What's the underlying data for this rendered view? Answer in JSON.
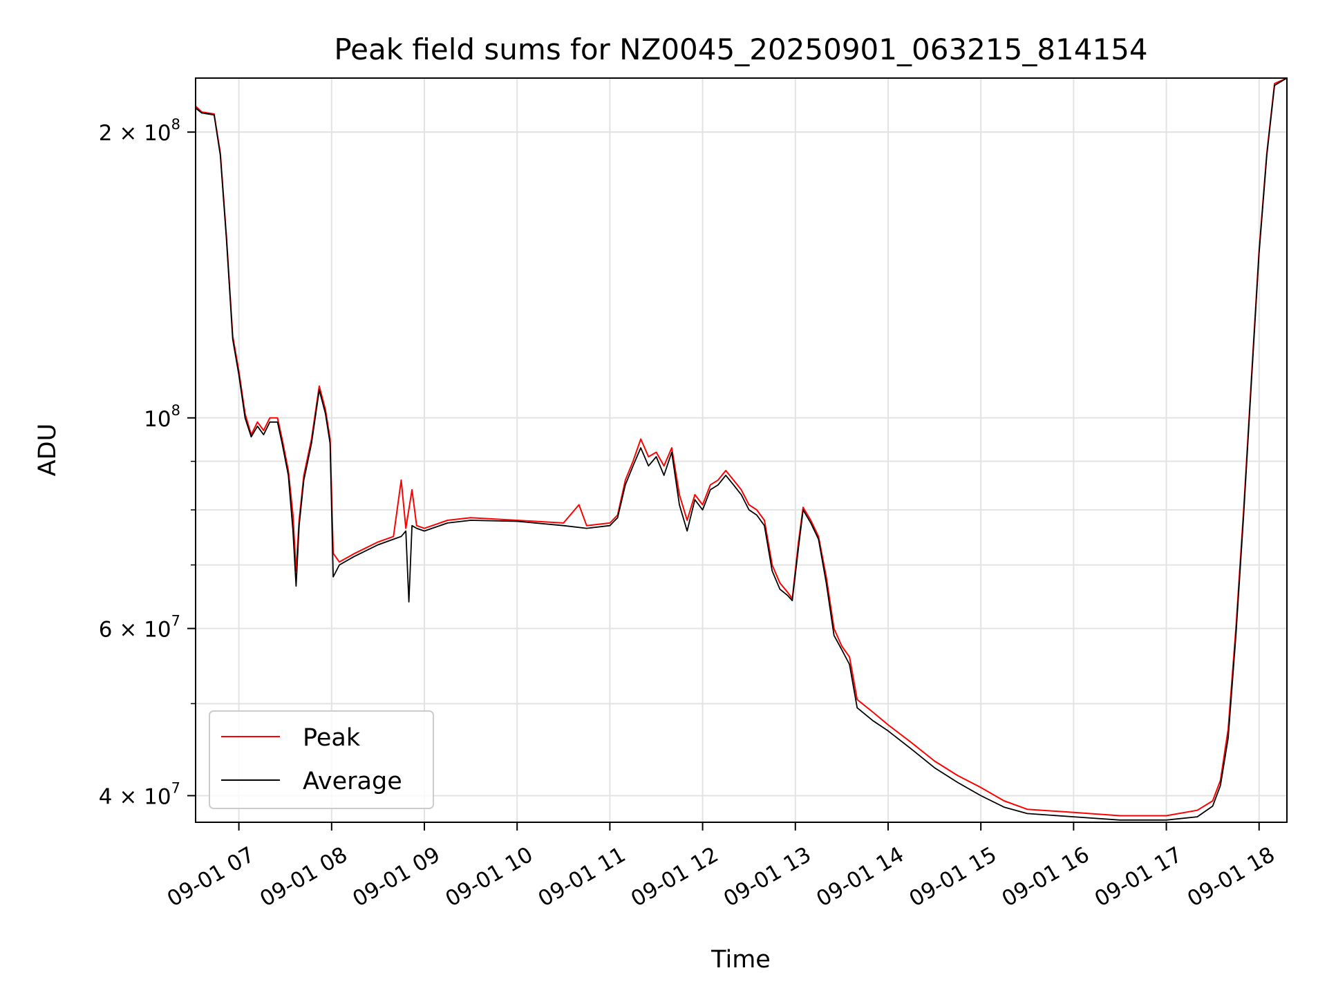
{
  "chart_data": {
    "type": "line",
    "title": "Peak field sums for NZ0045_20250901_063215_814154",
    "xlabel": "Time",
    "ylabel": "ADU",
    "yscale": "log",
    "grid": true,
    "legend_position": "lower-left",
    "xlim": [
      "06:32",
      "18:18"
    ],
    "ylim": [
      37500000,
      228000000
    ],
    "x_ticks": [
      {
        "value": "07:00",
        "label": "09-01 07"
      },
      {
        "value": "08:00",
        "label": "09-01 08"
      },
      {
        "value": "09:00",
        "label": "09-01 09"
      },
      {
        "value": "10:00",
        "label": "09-01 10"
      },
      {
        "value": "11:00",
        "label": "09-01 11"
      },
      {
        "value": "12:00",
        "label": "09-01 12"
      },
      {
        "value": "13:00",
        "label": "09-01 13"
      },
      {
        "value": "14:00",
        "label": "09-01 14"
      },
      {
        "value": "15:00",
        "label": "09-01 15"
      },
      {
        "value": "16:00",
        "label": "09-01 16"
      },
      {
        "value": "17:00",
        "label": "09-01 17"
      },
      {
        "value": "18:00",
        "label": "09-01 18"
      }
    ],
    "y_major_ticks": [
      {
        "value": 200000000,
        "mantissa": "2",
        "exp": "8"
      },
      {
        "value": 100000000,
        "mantissa": "",
        "exp": "8"
      },
      {
        "value": 60000000,
        "mantissa": "6",
        "exp": "7"
      },
      {
        "value": 40000000,
        "mantissa": "4",
        "exp": "7"
      }
    ],
    "y_minor_ticks": [
      40000000,
      50000000,
      60000000,
      70000000,
      80000000,
      90000000,
      200000000
    ],
    "series": [
      {
        "name": "Peak",
        "color": "#ff0000",
        "points": [
          [
            "06:32",
            213000000
          ],
          [
            "06:36",
            210000000
          ],
          [
            "06:44",
            209000000
          ],
          [
            "06:48",
            190000000
          ],
          [
            "06:52",
            155000000
          ],
          [
            "06:56",
            122000000
          ],
          [
            "07:00",
            112000000
          ],
          [
            "07:04",
            101000000
          ],
          [
            "07:08",
            96000000
          ],
          [
            "07:12",
            99000000
          ],
          [
            "07:16",
            97000000
          ],
          [
            "07:20",
            100000000
          ],
          [
            "07:25",
            100000000
          ],
          [
            "07:28",
            95000000
          ],
          [
            "07:32",
            88000000
          ],
          [
            "07:35",
            79000000
          ],
          [
            "07:37",
            69000000
          ],
          [
            "07:39",
            78000000
          ],
          [
            "07:42",
            87000000
          ],
          [
            "07:47",
            95000000
          ],
          [
            "07:52",
            108000000
          ],
          [
            "07:56",
            102000000
          ],
          [
            "07:59",
            95000000
          ],
          [
            "08:01",
            72000000
          ],
          [
            "08:05",
            70500000
          ],
          [
            "08:15",
            72000000
          ],
          [
            "08:30",
            74000000
          ],
          [
            "08:40",
            75000000
          ],
          [
            "08:45",
            86000000
          ],
          [
            "08:48",
            76500000
          ],
          [
            "08:52",
            84000000
          ],
          [
            "08:55",
            77000000
          ],
          [
            "09:00",
            76500000
          ],
          [
            "09:15",
            78000000
          ],
          [
            "09:30",
            78500000
          ],
          [
            "10:00",
            78000000
          ],
          [
            "10:30",
            77500000
          ],
          [
            "10:40",
            81000000
          ],
          [
            "10:45",
            77000000
          ],
          [
            "11:00",
            77500000
          ],
          [
            "11:05",
            79000000
          ],
          [
            "11:10",
            86000000
          ],
          [
            "11:15",
            90000000
          ],
          [
            "11:20",
            95000000
          ],
          [
            "11:25",
            91000000
          ],
          [
            "11:30",
            92000000
          ],
          [
            "11:35",
            89000000
          ],
          [
            "11:40",
            93000000
          ],
          [
            "11:45",
            83000000
          ],
          [
            "11:50",
            78000000
          ],
          [
            "11:55",
            83000000
          ],
          [
            "12:00",
            81000000
          ],
          [
            "12:05",
            85000000
          ],
          [
            "12:10",
            86000000
          ],
          [
            "12:15",
            88000000
          ],
          [
            "12:20",
            86000000
          ],
          [
            "12:25",
            84000000
          ],
          [
            "12:30",
            81000000
          ],
          [
            "12:35",
            80000000
          ],
          [
            "12:40",
            78000000
          ],
          [
            "12:45",
            70000000
          ],
          [
            "12:50",
            67000000
          ],
          [
            "12:55",
            65500000
          ],
          [
            "12:58",
            64500000
          ],
          [
            "13:02",
            74000000
          ],
          [
            "13:05",
            80500000
          ],
          [
            "13:10",
            78000000
          ],
          [
            "13:15",
            75000000
          ],
          [
            "13:20",
            68000000
          ],
          [
            "13:25",
            60000000
          ],
          [
            "13:30",
            57500000
          ],
          [
            "13:35",
            56000000
          ],
          [
            "13:40",
            50500000
          ],
          [
            "13:50",
            49000000
          ],
          [
            "14:00",
            47500000
          ],
          [
            "14:15",
            45500000
          ],
          [
            "14:30",
            43500000
          ],
          [
            "14:45",
            42000000
          ],
          [
            "15:00",
            40800000
          ],
          [
            "15:15",
            39500000
          ],
          [
            "15:30",
            38700000
          ],
          [
            "16:00",
            38400000
          ],
          [
            "16:30",
            38100000
          ],
          [
            "17:00",
            38100000
          ],
          [
            "17:20",
            38600000
          ],
          [
            "17:30",
            39500000
          ],
          [
            "17:35",
            41500000
          ],
          [
            "17:40",
            47000000
          ],
          [
            "17:45",
            60000000
          ],
          [
            "17:50",
            80000000
          ],
          [
            "17:55",
            110000000
          ],
          [
            "18:00",
            150000000
          ],
          [
            "18:05",
            190000000
          ],
          [
            "18:10",
            225000000
          ],
          [
            "18:18",
            228000000
          ]
        ]
      },
      {
        "name": "Average",
        "color": "#000000",
        "points": [
          [
            "06:32",
            212000000
          ],
          [
            "06:36",
            209500000
          ],
          [
            "06:44",
            208500000
          ],
          [
            "06:48",
            189000000
          ],
          [
            "06:52",
            154000000
          ],
          [
            "06:56",
            121000000
          ],
          [
            "07:00",
            111000000
          ],
          [
            "07:04",
            100000000
          ],
          [
            "07:08",
            95500000
          ],
          [
            "07:12",
            98000000
          ],
          [
            "07:16",
            96000000
          ],
          [
            "07:20",
            99000000
          ],
          [
            "07:25",
            99000000
          ],
          [
            "07:28",
            94000000
          ],
          [
            "07:32",
            87000000
          ],
          [
            "07:35",
            76000000
          ],
          [
            "07:37",
            66500000
          ],
          [
            "07:39",
            77000000
          ],
          [
            "07:42",
            86000000
          ],
          [
            "07:47",
            94000000
          ],
          [
            "07:52",
            107000000
          ],
          [
            "07:56",
            101000000
          ],
          [
            "07:59",
            94000000
          ],
          [
            "08:01",
            68000000
          ],
          [
            "08:05",
            70000000
          ],
          [
            "08:15",
            71500000
          ],
          [
            "08:30",
            73500000
          ],
          [
            "08:40",
            74500000
          ],
          [
            "08:45",
            75000000
          ],
          [
            "08:48",
            76000000
          ],
          [
            "08:50",
            64000000
          ],
          [
            "08:52",
            77000000
          ],
          [
            "08:55",
            76500000
          ],
          [
            "09:00",
            76000000
          ],
          [
            "09:15",
            77500000
          ],
          [
            "09:30",
            78000000
          ],
          [
            "10:00",
            77800000
          ],
          [
            "10:30",
            77000000
          ],
          [
            "10:45",
            76500000
          ],
          [
            "11:00",
            77000000
          ],
          [
            "11:05",
            78500000
          ],
          [
            "11:10",
            85000000
          ],
          [
            "11:15",
            89000000
          ],
          [
            "11:20",
            93000000
          ],
          [
            "11:25",
            89000000
          ],
          [
            "11:30",
            91000000
          ],
          [
            "11:35",
            87000000
          ],
          [
            "11:40",
            92000000
          ],
          [
            "11:45",
            81000000
          ],
          [
            "11:50",
            76000000
          ],
          [
            "11:55",
            82000000
          ],
          [
            "12:00",
            80000000
          ],
          [
            "12:05",
            84000000
          ],
          [
            "12:10",
            85000000
          ],
          [
            "12:15",
            87000000
          ],
          [
            "12:20",
            85000000
          ],
          [
            "12:25",
            83000000
          ],
          [
            "12:30",
            80000000
          ],
          [
            "12:35",
            79000000
          ],
          [
            "12:40",
            77000000
          ],
          [
            "12:45",
            69000000
          ],
          [
            "12:50",
            66000000
          ],
          [
            "12:55",
            65000000
          ],
          [
            "12:58",
            64200000
          ],
          [
            "13:02",
            73000000
          ],
          [
            "13:05",
            80000000
          ],
          [
            "13:10",
            77500000
          ],
          [
            "13:15",
            74500000
          ],
          [
            "13:20",
            67000000
          ],
          [
            "13:25",
            59000000
          ],
          [
            "13:30",
            57000000
          ],
          [
            "13:35",
            55000000
          ],
          [
            "13:40",
            49500000
          ],
          [
            "13:50",
            48000000
          ],
          [
            "14:00",
            46800000
          ],
          [
            "14:15",
            44800000
          ],
          [
            "14:30",
            42800000
          ],
          [
            "14:45",
            41300000
          ],
          [
            "15:00",
            40000000
          ],
          [
            "15:15",
            38900000
          ],
          [
            "15:30",
            38300000
          ],
          [
            "16:00",
            38000000
          ],
          [
            "16:30",
            37700000
          ],
          [
            "17:00",
            37700000
          ],
          [
            "17:20",
            38000000
          ],
          [
            "17:30",
            39000000
          ],
          [
            "17:35",
            41000000
          ],
          [
            "17:40",
            46000000
          ],
          [
            "17:45",
            59000000
          ],
          [
            "17:50",
            79000000
          ],
          [
            "17:55",
            109000000
          ],
          [
            "18:00",
            149000000
          ],
          [
            "18:05",
            189000000
          ],
          [
            "18:10",
            224000000
          ],
          [
            "18:18",
            228000000
          ]
        ]
      }
    ]
  }
}
